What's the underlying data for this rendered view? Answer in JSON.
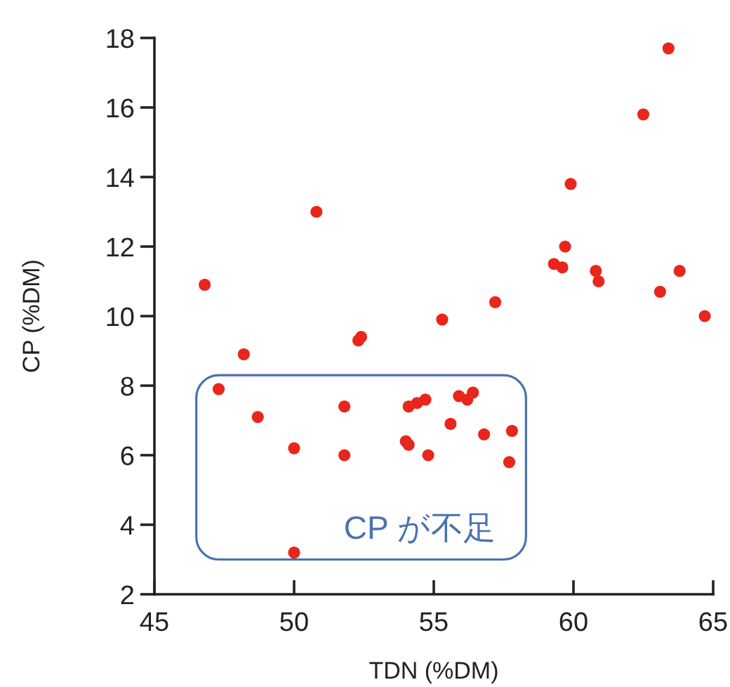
{
  "chart_data": {
    "type": "scatter",
    "xlabel": "TDN (%DM)",
    "ylabel": "CP (%DM)",
    "xlim": [
      45,
      65
    ],
    "ylim": [
      2,
      18
    ],
    "xticks": [
      45,
      50,
      55,
      60,
      65
    ],
    "yticks": [
      2,
      4,
      6,
      8,
      10,
      12,
      14,
      16,
      18
    ],
    "marker": "circle",
    "grid": false,
    "annotations": [
      "CP が不足"
    ],
    "series": [
      {
        "color": "#e8261c",
        "x": [
          46.8,
          50.8,
          52.3,
          52.4,
          55.3,
          57.2,
          59.3,
          59.6,
          59.7,
          59.9,
          60.8,
          60.9,
          62.5,
          63.1,
          63.4,
          63.8,
          64.7,
          48.2,
          47.3,
          48.7,
          50.0,
          51.8,
          51.8,
          50.0,
          54.1,
          54.4,
          54.7,
          54.0,
          54.1,
          54.8,
          55.6,
          55.9,
          56.2,
          56.4,
          56.8,
          57.8,
          57.7
        ],
        "values": [
          10.9,
          13.0,
          9.3,
          9.4,
          9.9,
          10.4,
          11.5,
          11.4,
          12.0,
          13.8,
          11.3,
          11.0,
          15.8,
          10.7,
          17.7,
          11.3,
          10.0,
          8.9,
          7.9,
          7.1,
          6.2,
          7.4,
          6.0,
          3.2,
          7.4,
          7.5,
          7.6,
          6.4,
          6.3,
          6.0,
          6.9,
          7.7,
          7.6,
          7.8,
          6.6,
          6.7,
          5.8
        ]
      }
    ]
  }
}
